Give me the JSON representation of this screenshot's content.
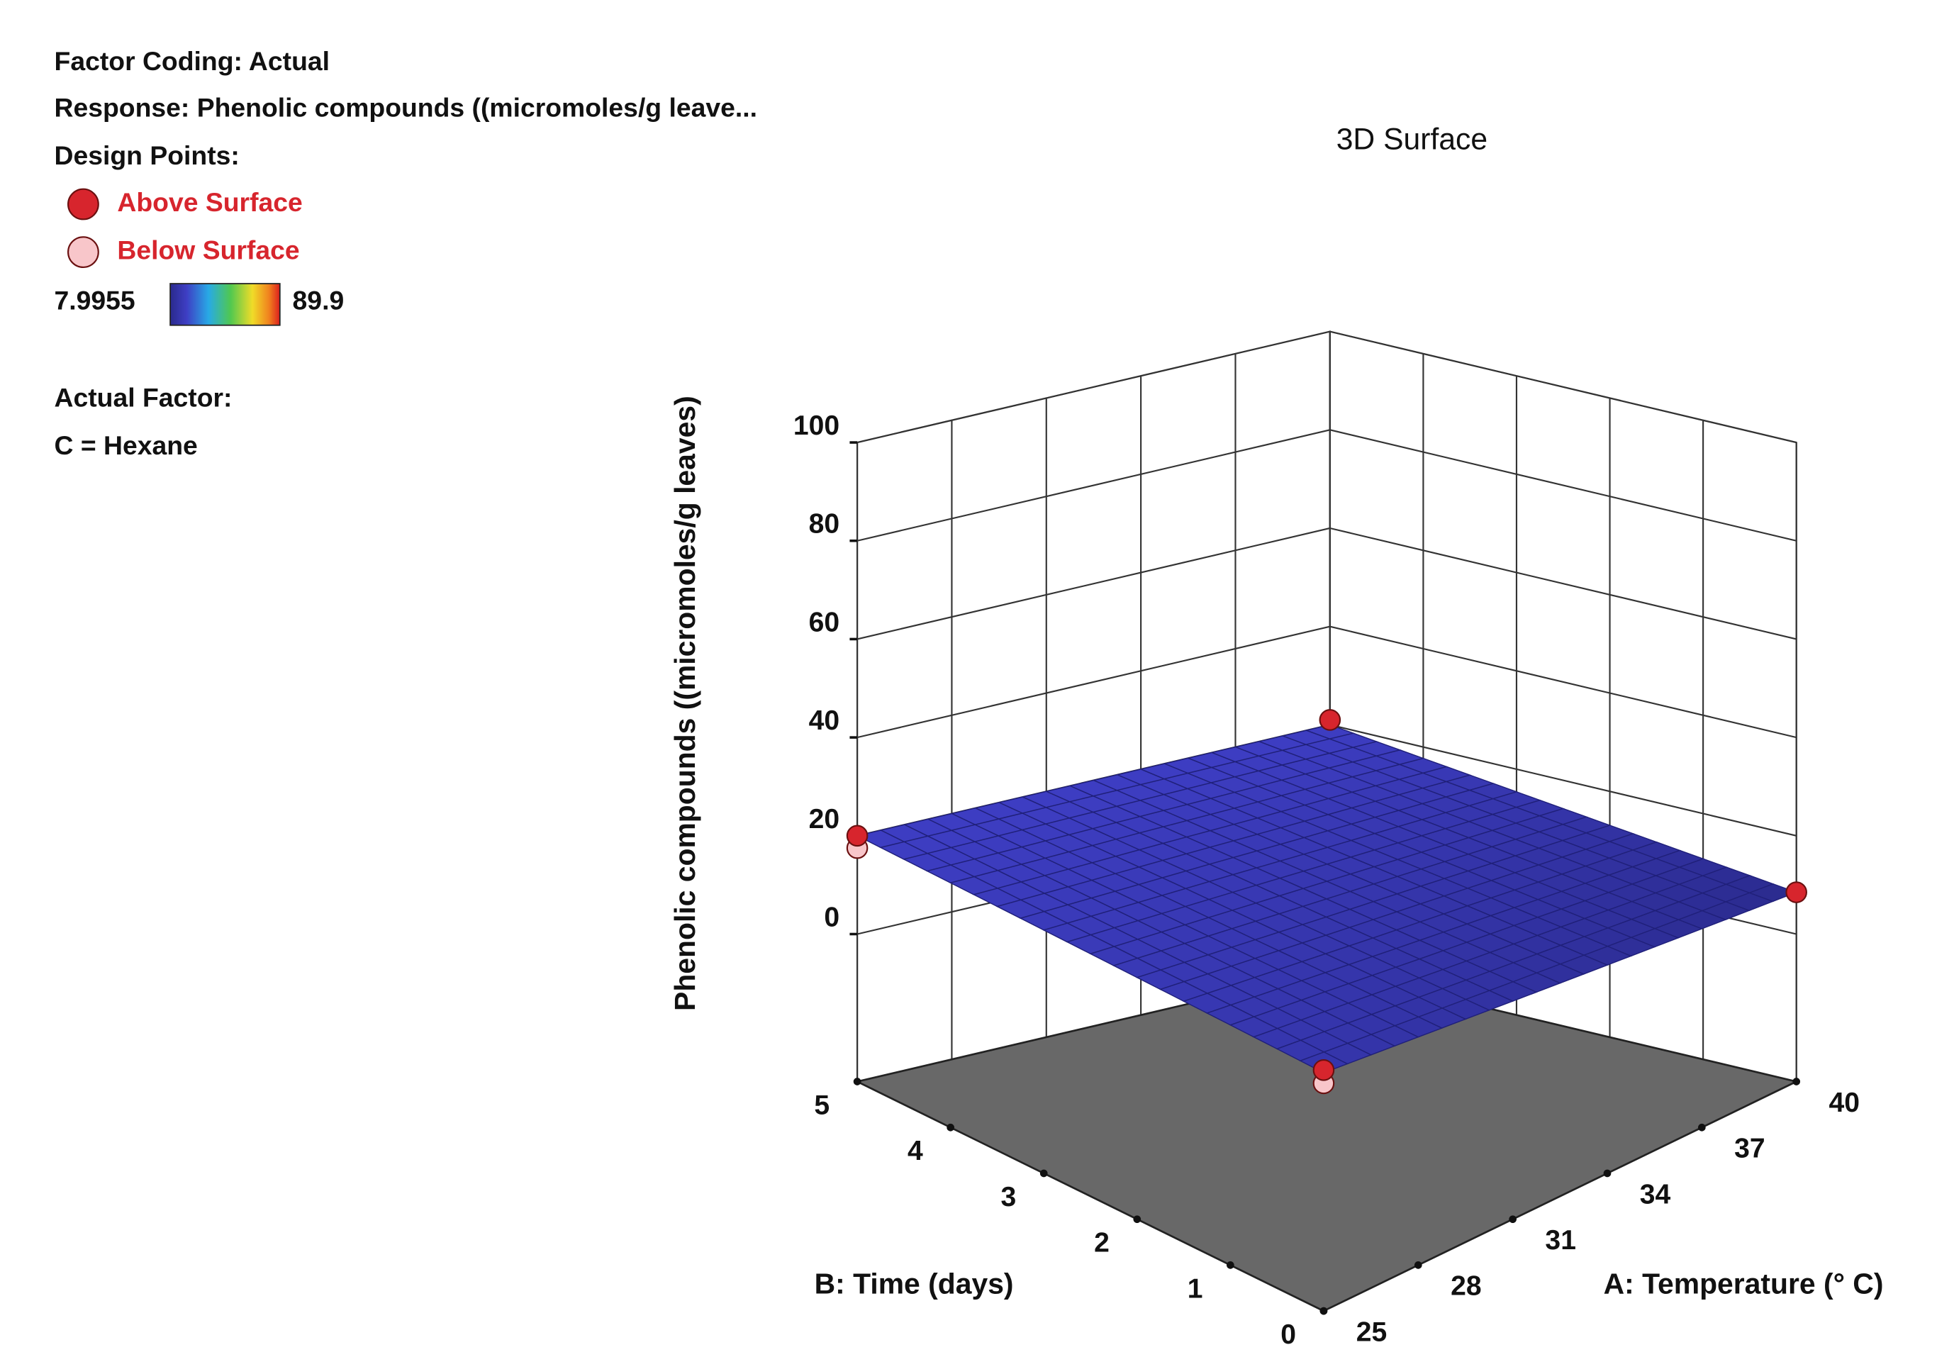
{
  "chart_data": {
    "type": "surface",
    "title": "3D Surface",
    "info": {
      "factor_coding": "Factor Coding: Actual",
      "response": "Response: Phenolic compounds  ((micromoles/g leave...",
      "design_points": "Design Points:",
      "actual_factor": "Actual Factor:",
      "factor_setting": "C = Hexane"
    },
    "colorbar": {
      "min": 7.9955,
      "max": 89.9
    },
    "xlabel": "A: Temperature  (°  C)",
    "ylabel": "B: Time (days)",
    "zlabel": "Phenolic compounds  ((micromoles/g leaves)",
    "x": [
      25,
      28,
      31,
      34,
      37,
      40
    ],
    "y": [
      0,
      1,
      2,
      3,
      4,
      5
    ],
    "z": [
      [
        15,
        13.7,
        12.4,
        11.1,
        9.8,
        8.5
      ],
      [
        16,
        15,
        13.9,
        12.9,
        11.8,
        10.8
      ],
      [
        17,
        16.2,
        15.4,
        14.7,
        13.9,
        13.1
      ],
      [
        18,
        17.5,
        17,
        16.4,
        15.9,
        15.4
      ],
      [
        19,
        18.7,
        18.5,
        18.2,
        18,
        17.7
      ],
      [
        20,
        20,
        20,
        20,
        20,
        20
      ]
    ],
    "xlim": [
      25,
      40
    ],
    "ylim": [
      0,
      5
    ],
    "zlim": [
      -30,
      100
    ],
    "xticks": [
      25,
      28,
      31,
      34,
      37,
      40
    ],
    "yticks": [
      0,
      1,
      2,
      3,
      4,
      5
    ],
    "zticks": [
      0,
      20,
      40,
      60,
      80,
      100
    ],
    "series": [
      {
        "name": "Above Surface",
        "color": "#d7252d",
        "x": [
          25,
          40,
          40,
          25
        ],
        "y": [
          5,
          5,
          0,
          0
        ],
        "z": [
          20,
          21,
          8.5,
          15.5
        ]
      },
      {
        "name": "Below Surface",
        "color": "#f8c6ca",
        "x": [
          25,
          25
        ],
        "y": [
          5,
          0
        ],
        "z": [
          17.5,
          13
        ]
      }
    ]
  }
}
